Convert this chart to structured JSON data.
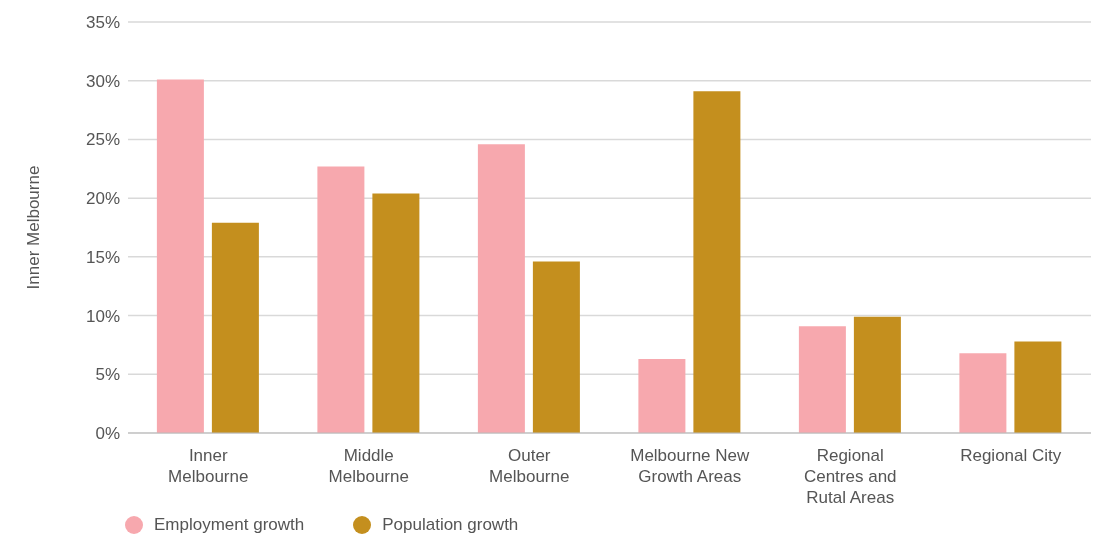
{
  "chart_data": {
    "type": "bar",
    "ylabel": "Inner Melbourne",
    "categories": [
      "Inner Melbourne",
      "Middle Melbourne",
      "Outer Melbourne",
      "Melbourne New Growth Areas",
      "Regional Centres and Rutal Areas",
      "Regional City"
    ],
    "series": [
      {
        "name": "Employment growth",
        "color": "#f7a8ae",
        "values": [
          30.1,
          22.7,
          24.6,
          6.3,
          9.1,
          6.8
        ]
      },
      {
        "name": "Population growth",
        "color": "#c48f1e",
        "values": [
          17.9,
          20.4,
          14.6,
          29.1,
          9.9,
          7.8
        ]
      }
    ],
    "ylim": [
      0,
      35
    ],
    "yticks": [
      {
        "value": 0,
        "label": "0%"
      },
      {
        "value": 5,
        "label": "5%"
      },
      {
        "value": 10,
        "label": "10%"
      },
      {
        "value": 15,
        "label": "15%"
      },
      {
        "value": 20,
        "label": "20%"
      },
      {
        "value": 25,
        "label": "25%"
      },
      {
        "value": 30,
        "label": "30%"
      },
      {
        "value": 35,
        "label": "35%"
      }
    ],
    "grid": "y",
    "legend": "bottom left"
  }
}
